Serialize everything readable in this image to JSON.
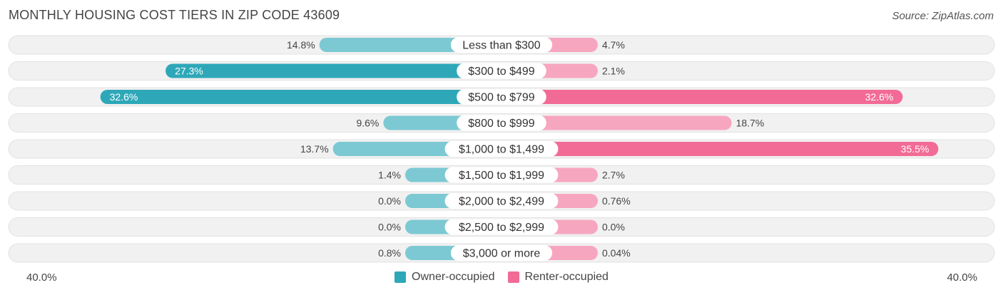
{
  "header": {
    "title": "MONTHLY HOUSING COST TIERS IN ZIP CODE 43609",
    "source": "Source: ZipAtlas.com"
  },
  "colors": {
    "owner": "#2ea8b8",
    "owner_light": "#7cc9d3",
    "renter": "#f26b96",
    "renter_light": "#f7a6c0",
    "track": "#f1f1f1"
  },
  "chart_data": {
    "type": "bar",
    "orientation": "horizontal-diverging",
    "categories": [
      "Less than $300",
      "$300 to $499",
      "$500 to $799",
      "$800 to $999",
      "$1,000 to $1,499",
      "$1,500 to $1,999",
      "$2,000 to $2,499",
      "$2,500 to $2,999",
      "$3,000 or more"
    ],
    "series": [
      {
        "name": "Owner-occupied",
        "values": [
          14.8,
          27.3,
          32.6,
          9.6,
          13.7,
          1.4,
          0.0,
          0.0,
          0.8
        ],
        "labels": [
          "14.8%",
          "27.3%",
          "32.6%",
          "9.6%",
          "13.7%",
          "1.4%",
          "0.0%",
          "0.0%",
          "0.8%"
        ]
      },
      {
        "name": "Renter-occupied",
        "values": [
          4.7,
          2.1,
          32.6,
          18.7,
          35.5,
          2.7,
          0.76,
          0.0,
          0.04
        ],
        "labels": [
          "4.7%",
          "2.1%",
          "32.6%",
          "18.7%",
          "35.5%",
          "2.7%",
          "0.76%",
          "0.0%",
          "0.04%"
        ]
      }
    ],
    "xlim": [
      -40,
      40
    ],
    "axis_left_label": "40.0%",
    "axis_right_label": "40.0%",
    "legend_position": "bottom-center"
  }
}
